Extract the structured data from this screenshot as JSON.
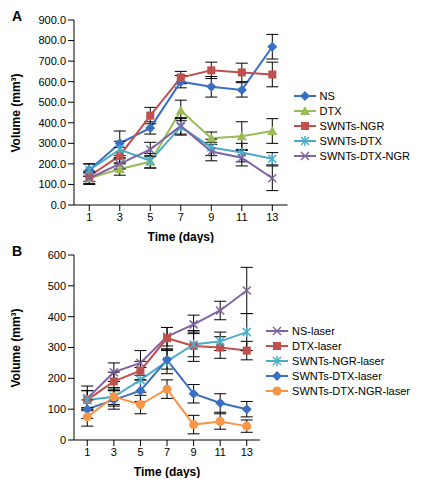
{
  "chart_data": [
    {
      "type": "line",
      "title": "A",
      "x_label": "Time (days)",
      "y_label": "Volume (mm³)",
      "x": [
        1,
        3,
        5,
        7,
        9,
        11,
        13
      ],
      "xlim": [
        0,
        14
      ],
      "xticks": [
        1,
        3,
        5,
        7,
        9,
        11,
        13
      ],
      "ylim": [
        0,
        900
      ],
      "yticks": [
        {
          "value": 0,
          "label": "0.0"
        },
        {
          "value": 100,
          "label": "100.0"
        },
        {
          "value": 200,
          "label": "200.0"
        },
        {
          "value": 300,
          "label": "300.0"
        },
        {
          "value": 400,
          "label": "400.0"
        },
        {
          "value": 500,
          "label": "500.0"
        },
        {
          "value": 600,
          "label": "600.0"
        },
        {
          "value": 700,
          "label": "700.0"
        },
        {
          "value": 800,
          "label": "800.0"
        },
        {
          "value": 900,
          "label": "900.0"
        }
      ],
      "legend": "right",
      "series": [
        {
          "name": "NS",
          "color": "#3a6fc4",
          "marker": "diamond",
          "values": [
            170,
            300,
            375,
            600,
            575,
            560,
            770
          ],
          "errors": [
            30,
            60,
            30,
            30,
            50,
            35,
            60
          ]
        },
        {
          "name": "DTX",
          "color": "#9bbb59",
          "marker": "triangle",
          "values": [
            130,
            175,
            210,
            460,
            325,
            335,
            360
          ],
          "errors": [
            25,
            30,
            30,
            50,
            30,
            70,
            60
          ]
        },
        {
          "name": "SWNTs-NGR",
          "color": "#c0504d",
          "marker": "square",
          "values": [
            140,
            240,
            435,
            620,
            655,
            645,
            635
          ],
          "errors": [
            25,
            40,
            40,
            30,
            40,
            45,
            60
          ]
        },
        {
          "name": "SWNTs-DTX",
          "color": "#4bacc6",
          "marker": "asterisk",
          "values": [
            170,
            270,
            215,
            380,
            280,
            255,
            225
          ],
          "errors": [
            30,
            40,
            35,
            40,
            40,
            45,
            30
          ]
        },
        {
          "name": "SWNTs-DTX-NGR",
          "color": "#8064a2",
          "marker": "x",
          "values": [
            130,
            200,
            270,
            385,
            260,
            230,
            130
          ],
          "errors": [
            30,
            25,
            35,
            40,
            45,
            40,
            60
          ]
        }
      ]
    },
    {
      "type": "line",
      "title": "B",
      "x_label": "Time (days)",
      "y_label": "Volume (mm³)",
      "x": [
        1,
        3,
        5,
        7,
        9,
        11,
        13
      ],
      "xlim": [
        0,
        14
      ],
      "xticks": [
        1,
        3,
        5,
        7,
        9,
        11,
        13
      ],
      "ylim": [
        0,
        600
      ],
      "yticks": [
        0,
        100,
        200,
        300,
        400,
        500,
        600
      ],
      "legend": "right",
      "series": [
        {
          "name": "NS-laser",
          "color": "#8064a2",
          "marker": "x",
          "values": [
            135,
            220,
            250,
            335,
            375,
            420,
            485
          ],
          "errors": [
            40,
            30,
            40,
            30,
            30,
            30,
            75
          ]
        },
        {
          "name": "DTX-laser",
          "color": "#c0504d",
          "marker": "square",
          "values": [
            130,
            190,
            225,
            330,
            305,
            300,
            290
          ],
          "errors": [
            30,
            30,
            30,
            35,
            50,
            35,
            30
          ]
        },
        {
          "name": "SWNTs-NGR-laser",
          "color": "#4bacc6",
          "marker": "asterisk",
          "values": [
            130,
            140,
            195,
            255,
            310,
            320,
            350
          ],
          "errors": [
            30,
            30,
            40,
            40,
            40,
            30,
            60
          ]
        },
        {
          "name": "SWNTs-DTX-laser",
          "color": "#3a6fc4",
          "marker": "diamond",
          "values": [
            100,
            130,
            160,
            260,
            150,
            120,
            100
          ],
          "errors": [
            30,
            30,
            35,
            30,
            30,
            30,
            25
          ]
        },
        {
          "name": "SWNTs-DTX-NGR-laser",
          "color": "#f79646",
          "marker": "circle",
          "values": [
            75,
            140,
            115,
            165,
            50,
            60,
            45
          ],
          "errors": [
            30,
            25,
            30,
            30,
            30,
            25,
            20
          ]
        }
      ]
    }
  ]
}
